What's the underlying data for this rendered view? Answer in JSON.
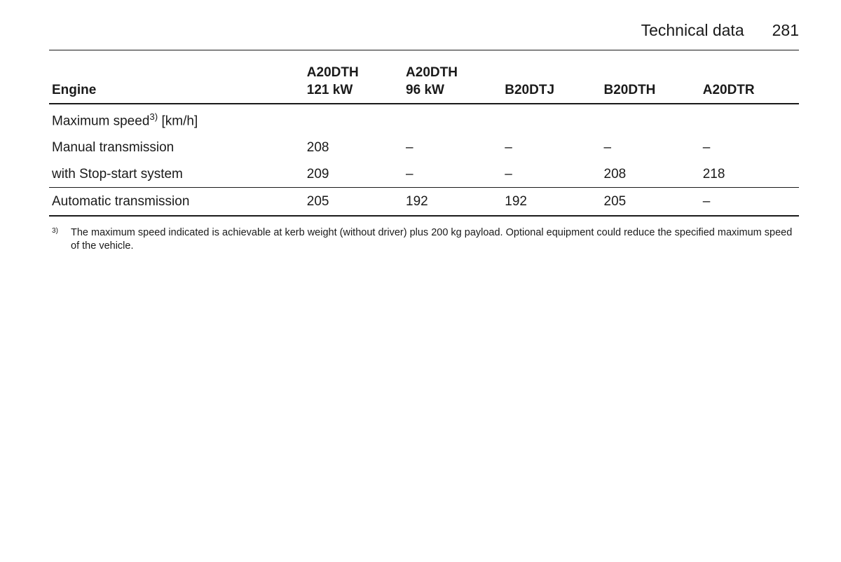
{
  "header": {
    "section_title": "Technical data",
    "page_number": "281"
  },
  "table": {
    "columns": [
      {
        "label_line1": "",
        "label_line2": "Engine"
      },
      {
        "label_line1": "A20DTH",
        "label_line2": "121 kW"
      },
      {
        "label_line1": "A20DTH",
        "label_line2": "96 kW"
      },
      {
        "label_line1": "",
        "label_line2": "B20DTJ"
      },
      {
        "label_line1": "",
        "label_line2": "B20DTH"
      },
      {
        "label_line1": "",
        "label_line2": "A20DTR"
      }
    ],
    "section_label_pre": "Maximum speed",
    "section_label_sup": "3)",
    "section_label_post": " [km/h]",
    "rows": [
      {
        "label": "Manual transmission",
        "cells": [
          "208",
          "–",
          "–",
          "–",
          "–"
        ]
      },
      {
        "label": "with Stop-start system",
        "cells": [
          "209",
          "–",
          "–",
          "208",
          "218"
        ]
      }
    ],
    "divider_row": {
      "label": "Automatic transmission",
      "cells": [
        "205",
        "192",
        "192",
        "205",
        "–"
      ]
    }
  },
  "footnote": {
    "marker": "3)",
    "text": "The maximum speed indicated is achievable at kerb weight (without driver) plus 200 kg payload. Optional equipment could reduce the specified maximum speed of the vehicle."
  }
}
